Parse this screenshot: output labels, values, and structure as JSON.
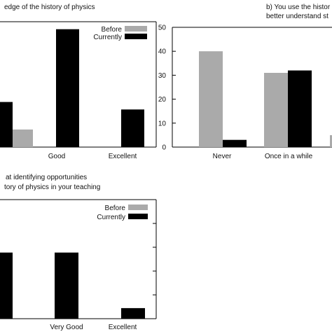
{
  "colors": {
    "before": "#aaaaaa",
    "currently": "#000000",
    "axis": "#000000"
  },
  "chart_data": [
    {
      "type": "bar",
      "title_lines": [
        "edge of the history of physics"
      ],
      "categories": [
        "Good",
        "Excellent"
      ],
      "legend": [
        "Before",
        "Currently"
      ],
      "legend_position": "top-right",
      "series": [
        {
          "name": "Before",
          "values": [
            7,
            0
          ]
        },
        {
          "name": "Currently",
          "values": [
            47,
            15
          ]
        }
      ],
      "partial_left_values": [
        null,
        18
      ],
      "ylim": [
        0,
        50
      ],
      "ytick_labels": []
    },
    {
      "type": "bar",
      "title_lines": [
        "b) You use the histor",
        "better understand st"
      ],
      "categories": [
        "Never",
        "Once in a while"
      ],
      "series": [
        {
          "name": "Before",
          "values": [
            40,
            31
          ]
        },
        {
          "name": "Currently",
          "values": [
            3,
            32
          ]
        }
      ],
      "ylim": [
        0,
        50
      ],
      "ytick_labels": [
        "0",
        "10",
        "20",
        "30",
        "40",
        "50"
      ]
    },
    {
      "type": "bar",
      "title_lines": [
        "at identifying opportunities",
        "tory of physics in your teaching"
      ],
      "categories": [
        "Very Good",
        "Excellent"
      ],
      "legend": [
        "Before",
        "Currently"
      ],
      "legend_position": "top-right",
      "series": [
        {
          "name": "Before",
          "values": [
            0,
            0
          ]
        },
        {
          "name": "Currently",
          "values": [
            25,
            4
          ]
        }
      ],
      "partial_left_values": [
        null,
        25
      ],
      "ylim": [
        0,
        45
      ],
      "ytick_labels": []
    }
  ]
}
